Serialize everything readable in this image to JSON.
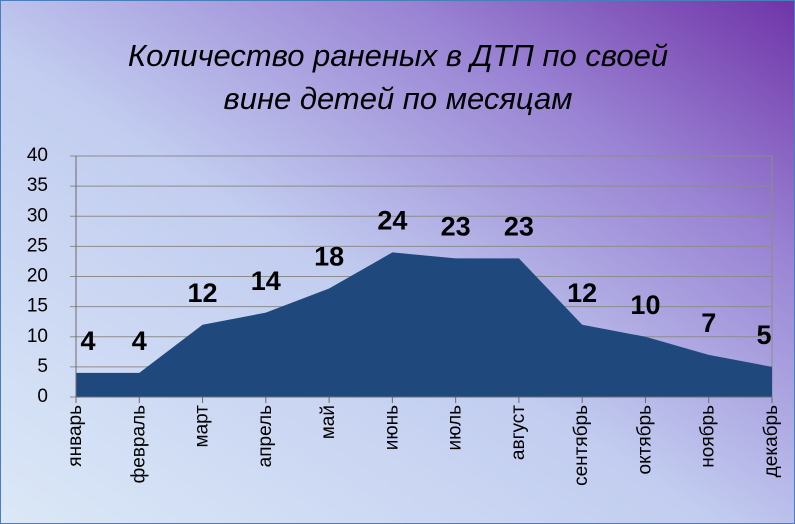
{
  "chart_data": {
    "type": "area",
    "title": [
      "Количество раненых в ДТП по своей",
      "вине детей по месяцам"
    ],
    "categories": [
      "январь",
      "февраль",
      "март",
      "апрель",
      "май",
      "июнь",
      "июль",
      "август",
      "сентябрь",
      "октябрь",
      "ноябрь",
      "декабрь"
    ],
    "values": [
      4,
      4,
      12,
      14,
      18,
      24,
      23,
      23,
      12,
      10,
      7,
      5
    ],
    "color": "#1f497d",
    "ylim": [
      0,
      40
    ],
    "yticks": [
      0,
      5,
      10,
      15,
      20,
      25,
      30,
      35,
      40
    ],
    "grid": true
  }
}
